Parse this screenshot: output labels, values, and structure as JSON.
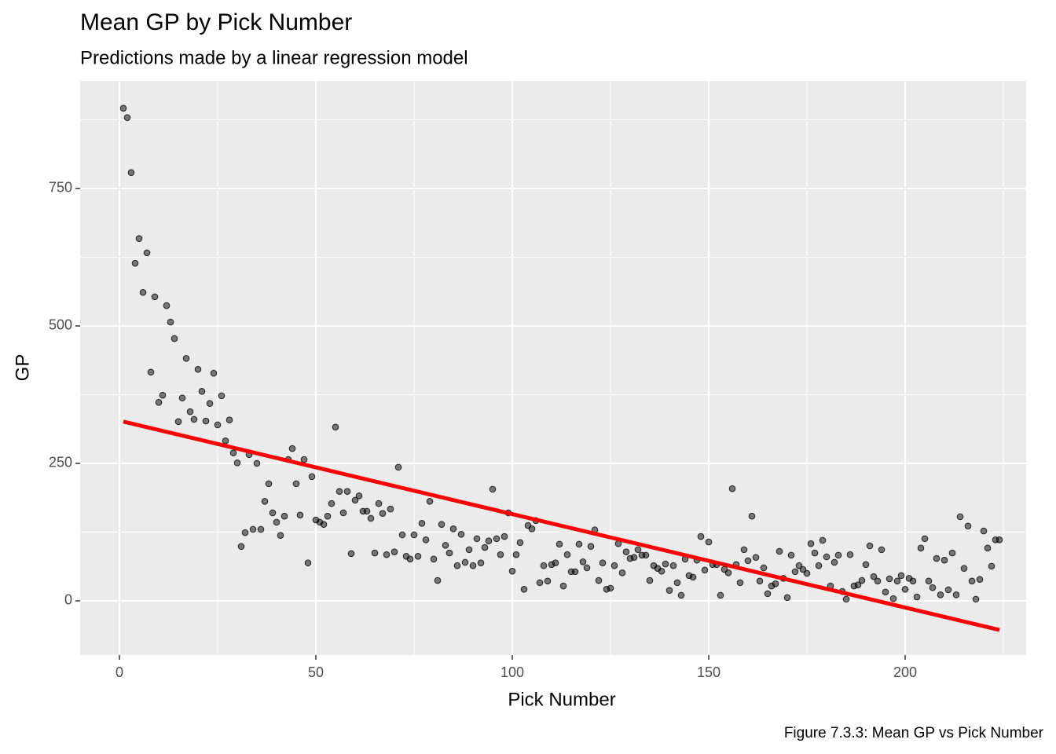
{
  "chart_data": {
    "type": "scatter",
    "title": "Mean GP by Pick Number",
    "subtitle": "Predictions made by a linear regression model",
    "x_label": "Pick Number",
    "y_label": "GP",
    "caption": "Figure 7.3.3: Mean GP vs Pick Number",
    "xlim": [
      -10,
      230.8
    ],
    "ylim": [
      -98.6,
      945.7
    ],
    "xticks": [
      0,
      50,
      100,
      150,
      200
    ],
    "yticks": [
      0,
      250,
      500,
      750
    ],
    "x_minor_grid": [
      25,
      75,
      125,
      175,
      225
    ],
    "y_minor_grid": [
      125,
      375,
      625,
      875
    ],
    "grid": true,
    "point_color": "#000000",
    "x": [
      1,
      2,
      3,
      4,
      5,
      6,
      7,
      8,
      9,
      10,
      11,
      12,
      13,
      14,
      15,
      16,
      17,
      18,
      19,
      20,
      21,
      22,
      23,
      24,
      25,
      26,
      27,
      28,
      29,
      30,
      31,
      32,
      33,
      34,
      35,
      36,
      37,
      38,
      39,
      40,
      41,
      42,
      43,
      44,
      45,
      46,
      47,
      48,
      49,
      50,
      51,
      52,
      53,
      54,
      55,
      56,
      57,
      58,
      59,
      60,
      61,
      62,
      63,
      64,
      65,
      66,
      67,
      68,
      69,
      70,
      71,
      72,
      73,
      74,
      75,
      76,
      77,
      78,
      79,
      80,
      81,
      82,
      83,
      84,
      85,
      86,
      87,
      88,
      89,
      90,
      91,
      92,
      93,
      94,
      95,
      96,
      97,
      98,
      99,
      100,
      101,
      102,
      103,
      104,
      105,
      106,
      107,
      108,
      109,
      110,
      111,
      112,
      113,
      114,
      115,
      116,
      117,
      118,
      119,
      120,
      121,
      122,
      123,
      124,
      125,
      126,
      127,
      128,
      129,
      130,
      131,
      132,
      133,
      134,
      135,
      136,
      137,
      138,
      139,
      140,
      141,
      142,
      143,
      144,
      145,
      146,
      147,
      148,
      149,
      150,
      151,
      152,
      153,
      154,
      155,
      156,
      157,
      158,
      159,
      160,
      161,
      162,
      163,
      164,
      165,
      166,
      167,
      168,
      169,
      170,
      171,
      172,
      173,
      174,
      175,
      176,
      177,
      178,
      179,
      180,
      181,
      182,
      183,
      184,
      185,
      186,
      187,
      188,
      189,
      190,
      191,
      192,
      193,
      194,
      195,
      196,
      197,
      198,
      199,
      200,
      201,
      202,
      203,
      204,
      205,
      206,
      207,
      208,
      209,
      210,
      211,
      212,
      213,
      214,
      215,
      216,
      217,
      218,
      219,
      220,
      221,
      222,
      223,
      224
    ],
    "values": [
      896,
      879,
      779,
      614,
      659,
      561,
      633,
      416,
      553,
      361,
      374,
      537,
      507,
      477,
      326,
      369,
      441,
      344,
      330,
      421,
      381,
      327,
      359,
      414,
      320,
      373,
      291,
      329,
      269,
      251,
      99,
      124,
      266,
      130,
      250,
      130,
      181,
      213,
      160,
      143,
      119,
      154,
      257,
      277,
      213,
      156,
      257,
      69,
      226,
      147,
      143,
      139,
      154,
      177,
      316,
      199,
      160,
      199,
      86,
      183,
      191,
      163,
      163,
      150,
      87,
      177,
      159,
      84,
      167,
      89,
      243,
      120,
      81,
      76,
      120,
      81,
      141,
      111,
      181,
      76,
      37,
      139,
      101,
      87,
      131,
      64,
      121,
      70,
      93,
      64,
      113,
      69,
      97,
      109,
      203,
      113,
      84,
      117,
      160,
      54,
      84,
      106,
      21,
      137,
      131,
      146,
      33,
      64,
      36,
      66,
      69,
      103,
      27,
      84,
      53,
      53,
      103,
      71,
      60,
      99,
      129,
      37,
      69,
      21,
      23,
      64,
      104,
      51,
      89,
      77,
      79,
      93,
      83,
      83,
      37,
      64,
      59,
      54,
      67,
      19,
      64,
      33,
      10,
      76,
      46,
      43,
      74,
      117,
      56,
      107,
      66,
      66,
      10,
      57,
      51,
      204,
      66,
      33,
      93,
      73,
      154,
      79,
      36,
      60,
      13,
      27,
      31,
      90,
      41,
      6,
      83,
      53,
      64,
      57,
      50,
      104,
      87,
      64,
      110,
      80,
      27,
      70,
      83,
      17,
      3,
      84,
      27,
      29,
      37,
      66,
      100,
      44,
      36,
      93,
      16,
      40,
      4,
      36,
      46,
      21,
      41,
      36,
      7,
      96,
      113,
      36,
      24,
      77,
      11,
      74,
      20,
      87,
      11,
      153,
      59,
      136,
      36,
      3,
      39,
      127,
      96,
      63,
      111,
      111
    ],
    "fit": {
      "x": [
        1,
        224
      ],
      "values": [
        326,
        -53
      ],
      "color": "#ff0000"
    }
  }
}
